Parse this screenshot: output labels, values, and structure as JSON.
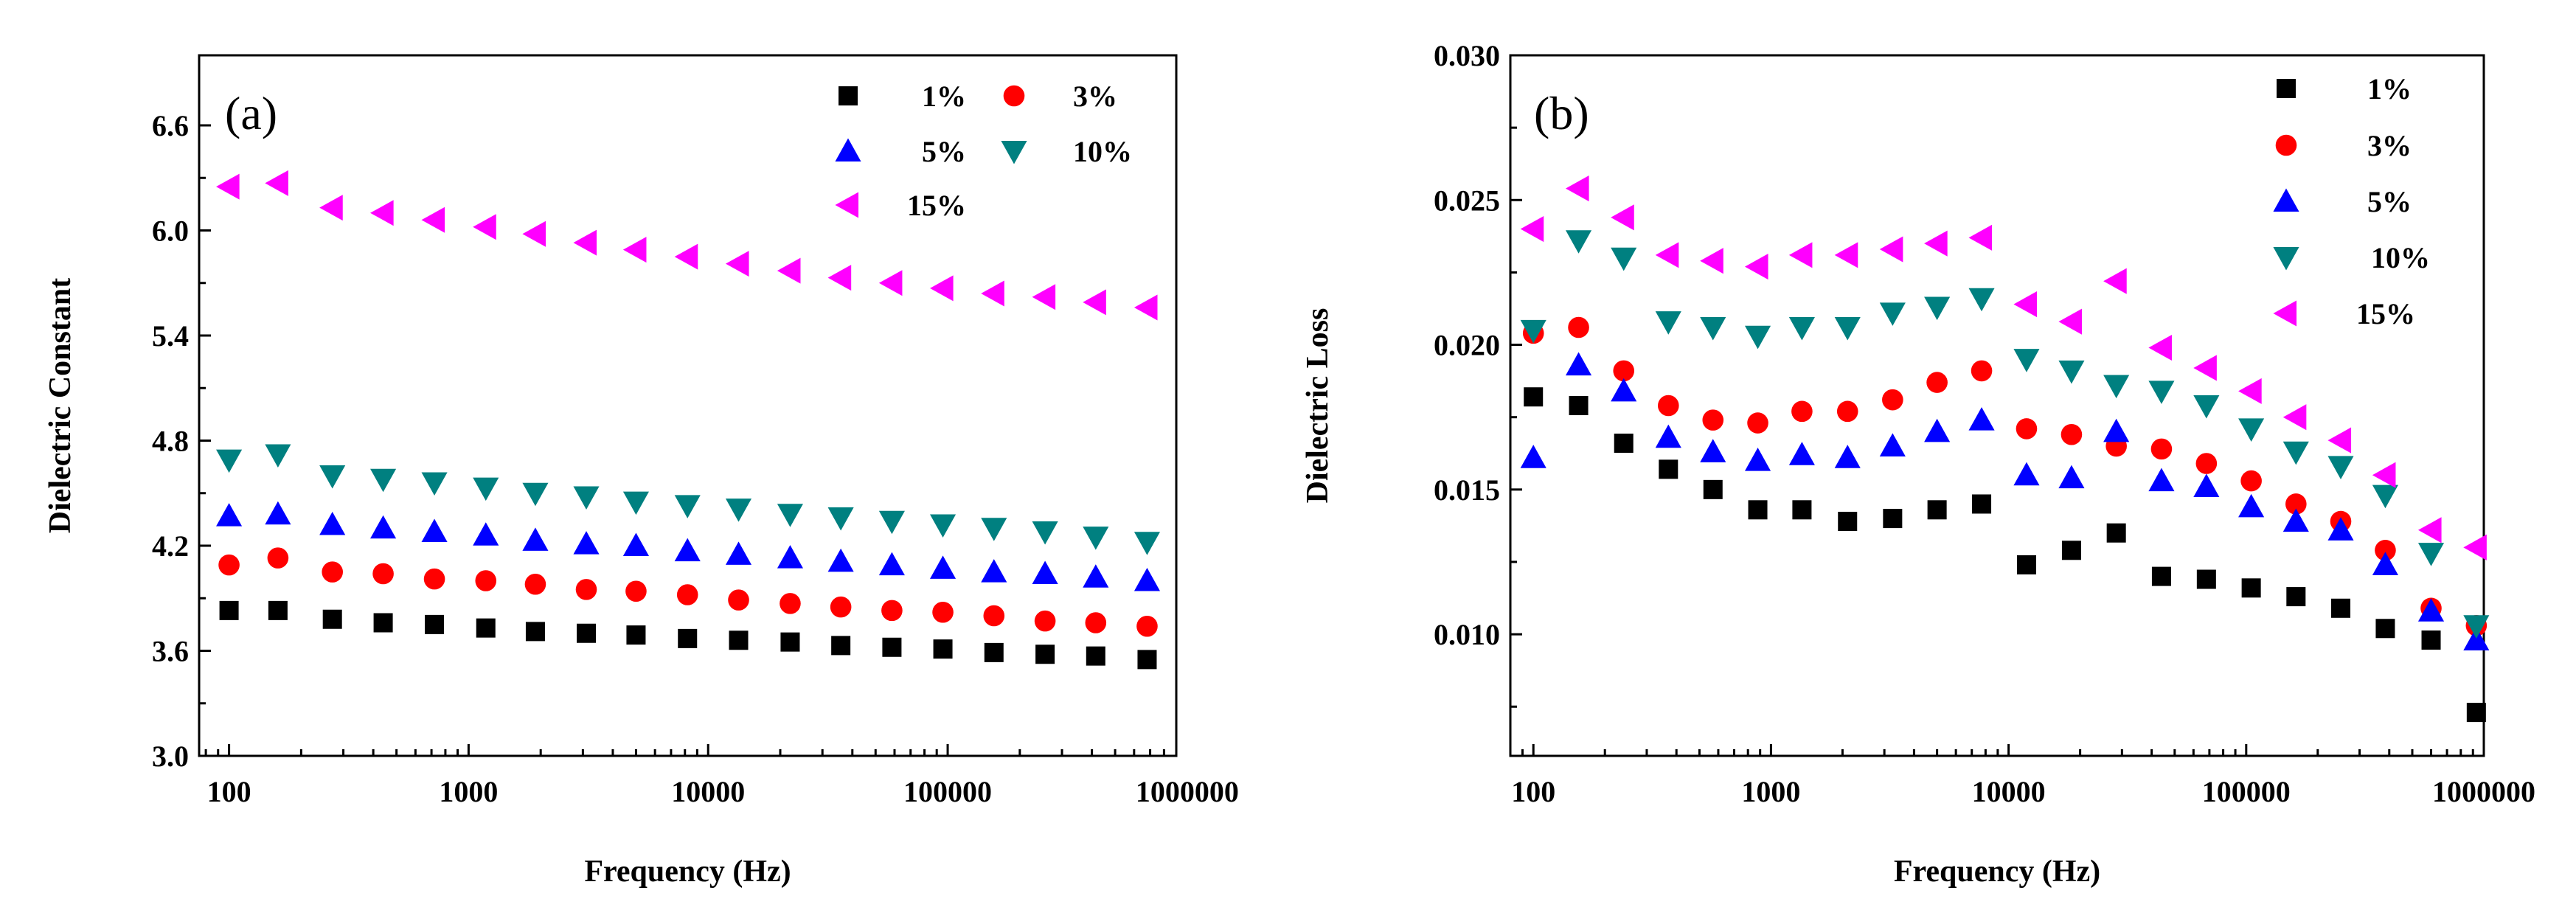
{
  "chart_data": [
    {
      "type": "scatter",
      "panel_label": "(a)",
      "xlabel": "Frequency (Hz)",
      "ylabel": "Dielectric Constant",
      "xscale": "log",
      "xlim": [
        75,
        900000
      ],
      "ylim": [
        3.0,
        7.0
      ],
      "xticks": [
        100,
        1000,
        10000,
        100000,
        1000000
      ],
      "xtick_labels": [
        "100",
        "1000",
        "10000",
        "100000",
        "1000000"
      ],
      "yticks": [
        3.0,
        3.6,
        4.2,
        4.8,
        5.4,
        6.0,
        6.6
      ],
      "ytick_labels": [
        "3.0",
        "3.6",
        "4.2",
        "4.8",
        "5.4",
        "6.0",
        "6.6"
      ],
      "legend_placement": "top-right",
      "x": [
        100,
        160,
        270,
        440,
        720,
        1180,
        1900,
        3100,
        5000,
        8200,
        13400,
        22000,
        35800,
        58500,
        95500,
        156000,
        255000,
        415000,
        680000
      ],
      "series": [
        {
          "name": "1%",
          "marker": "square",
          "color": "#000000",
          "values": [
            3.83,
            3.83,
            3.78,
            3.76,
            3.75,
            3.73,
            3.71,
            3.7,
            3.69,
            3.67,
            3.66,
            3.65,
            3.63,
            3.62,
            3.61,
            3.59,
            3.58,
            3.57,
            3.55
          ]
        },
        {
          "name": "3%",
          "marker": "circle",
          "color": "#ff0000",
          "values": [
            4.09,
            4.13,
            4.05,
            4.04,
            4.01,
            4.0,
            3.98,
            3.95,
            3.94,
            3.92,
            3.89,
            3.87,
            3.85,
            3.83,
            3.82,
            3.8,
            3.77,
            3.76,
            3.74
          ]
        },
        {
          "name": "5%",
          "marker": "triangle-up",
          "color": "#0000ff",
          "values": [
            4.37,
            4.38,
            4.32,
            4.3,
            4.28,
            4.26,
            4.23,
            4.21,
            4.2,
            4.17,
            4.15,
            4.13,
            4.11,
            4.09,
            4.07,
            4.05,
            4.04,
            4.02,
            4.0
          ]
        },
        {
          "name": "10%",
          "marker": "triangle-down",
          "color": "#008080",
          "values": [
            4.69,
            4.72,
            4.6,
            4.58,
            4.56,
            4.53,
            4.5,
            4.48,
            4.45,
            4.43,
            4.41,
            4.38,
            4.36,
            4.34,
            4.32,
            4.3,
            4.28,
            4.25,
            4.22
          ]
        },
        {
          "name": "15%",
          "marker": "triangle-left",
          "color": "#ff00ff",
          "values": [
            6.25,
            6.27,
            6.13,
            6.1,
            6.06,
            6.02,
            5.98,
            5.93,
            5.89,
            5.85,
            5.81,
            5.77,
            5.73,
            5.7,
            5.67,
            5.64,
            5.62,
            5.59,
            5.56
          ]
        }
      ]
    },
    {
      "type": "scatter",
      "panel_label": "(b)",
      "xlabel": "Frequency (Hz)",
      "ylabel": "Dielectric Loss",
      "xscale": "log",
      "xlim": [
        80,
        1000000
      ],
      "ylim": [
        0.0058,
        0.03
      ],
      "xticks": [
        100,
        1000,
        10000,
        100000,
        1000000
      ],
      "xtick_labels": [
        "100",
        "1000",
        "10000",
        "100000",
        "1000000"
      ],
      "yticks": [
        0.01,
        0.015,
        0.02,
        0.025,
        0.03
      ],
      "ytick_labels": [
        "0.010",
        "0.015",
        "0.020",
        "0.025",
        "0.030"
      ],
      "legend_placement": "top-right",
      "x": [
        100,
        155,
        240,
        370,
        570,
        880,
        1350,
        2100,
        3250,
        5000,
        7700,
        11900,
        18400,
        28400,
        44000,
        68000,
        105000,
        162000,
        250000,
        385000,
        600000,
        930000
      ],
      "series": [
        {
          "name": "1%",
          "marker": "square",
          "color": "#000000",
          "values": [
            0.0182,
            0.0179,
            0.0166,
            0.0157,
            0.015,
            0.0143,
            0.0143,
            0.0139,
            0.014,
            0.0143,
            0.0145,
            0.0124,
            0.0129,
            0.0135,
            0.012,
            0.0119,
            0.0116,
            0.0113,
            0.0109,
            0.0102,
            0.0098,
            0.0073
          ]
        },
        {
          "name": "3%",
          "marker": "circle",
          "color": "#ff0000",
          "values": [
            0.0204,
            0.0206,
            0.0191,
            0.0179,
            0.0174,
            0.0173,
            0.0177,
            0.0177,
            0.0181,
            0.0187,
            0.0191,
            0.0171,
            0.0169,
            0.0165,
            0.0164,
            0.0159,
            0.0153,
            0.0145,
            0.0139,
            0.0129,
            0.0109,
            0.0103
          ]
        },
        {
          "name": "5%",
          "marker": "triangle-up",
          "color": "#0000ff",
          "values": [
            0.0161,
            0.0193,
            0.0184,
            0.0168,
            0.0163,
            0.016,
            0.0162,
            0.0161,
            0.0165,
            0.017,
            0.0174,
            0.0155,
            0.0154,
            0.017,
            0.0153,
            0.0151,
            0.0144,
            0.0139,
            0.0136,
            0.0124,
            0.0108,
            0.0098
          ]
        },
        {
          "name": "10%",
          "marker": "triangle-down",
          "color": "#008080",
          "values": [
            0.0205,
            0.0236,
            0.023,
            0.0208,
            0.0206,
            0.0203,
            0.0206,
            0.0206,
            0.0211,
            0.0213,
            0.0216,
            0.0195,
            0.0191,
            0.0186,
            0.0184,
            0.0179,
            0.0171,
            0.0163,
            0.0158,
            0.0148,
            0.0128,
            0.0103
          ]
        },
        {
          "name": "15%",
          "marker": "triangle-left",
          "color": "#ff00ff",
          "values": [
            0.024,
            0.0254,
            0.0244,
            0.0231,
            0.0229,
            0.0227,
            0.0231,
            0.0231,
            0.0233,
            0.0235,
            0.0237,
            0.0214,
            0.0208,
            0.0222,
            0.0199,
            0.0192,
            0.0184,
            0.0175,
            0.0167,
            0.0155,
            0.0136,
            0.013
          ]
        }
      ]
    }
  ]
}
